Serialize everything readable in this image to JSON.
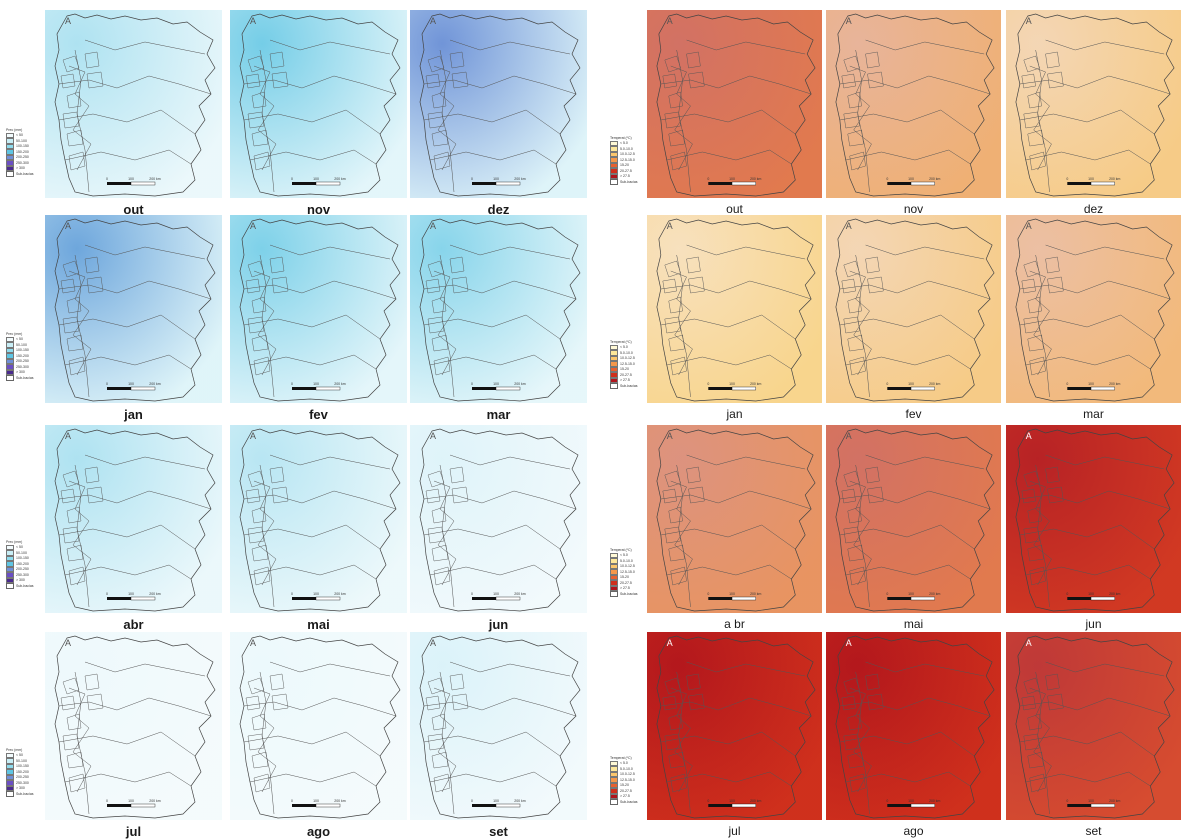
{
  "months": [
    "out",
    "nov",
    "dez",
    "jan",
    "fev",
    "mar",
    "abr",
    "mai",
    "jun",
    "jul",
    "ago",
    "set"
  ],
  "month_labels": {
    "left": [
      "out",
      "nov",
      "dez",
      "jan",
      "fev",
      "mar",
      "abr",
      "mai",
      "jun",
      "jul",
      "ago",
      "set"
    ],
    "right": [
      "out",
      "nov",
      "dez",
      "jan",
      "fev",
      "mar",
      "a br",
      "mai",
      "jun",
      "jul",
      "ago",
      "set"
    ]
  },
  "map_text": {
    "north_arrow": "A",
    "scale_ticks": [
      "0",
      "100",
      "200 km"
    ]
  },
  "legend_precip": {
    "title": "Prec (mm)",
    "items": [
      "< 50",
      "50-100",
      "100-150",
      "150-200",
      "200-250",
      "250-300",
      "> 300"
    ],
    "boundary_label": "Sub-bacias",
    "colors": [
      "#f2fbfd",
      "#c8eef6",
      "#8fdcee",
      "#5ec5e3",
      "#6f8fd8",
      "#6b4fc4",
      "#4a2a8f"
    ]
  },
  "legend_temp": {
    "title": "Temperat (ºC)",
    "items": [
      "< 5.0",
      "5.0-10.0",
      "10.0-12.5",
      "12.5-15.0",
      "15-20",
      "20-27.5",
      "> 27.5"
    ],
    "boundary_label": "Sub-bacias",
    "colors": [
      "#fff9d6",
      "#fde79a",
      "#fbc66c",
      "#f5974a",
      "#e8602f",
      "#cf2f1c",
      "#b0141c"
    ]
  },
  "precip_intensity": {
    "out": 0.35,
    "nov": 0.65,
    "dez": 0.85,
    "jan": 0.8,
    "fev": 0.6,
    "mar": 0.55,
    "abr": 0.35,
    "mai": 0.3,
    "jun": 0.1,
    "jul": 0.02,
    "ago": 0.03,
    "set": 0.12
  },
  "temp_intensity": {
    "out": 0.6,
    "nov": 0.3,
    "dez": 0.15,
    "jan": 0.1,
    "fev": 0.15,
    "mar": 0.25,
    "abr": 0.45,
    "mai": 0.6,
    "jun": 0.95,
    "jul": 1.0,
    "ago": 1.0,
    "set": 0.85
  }
}
